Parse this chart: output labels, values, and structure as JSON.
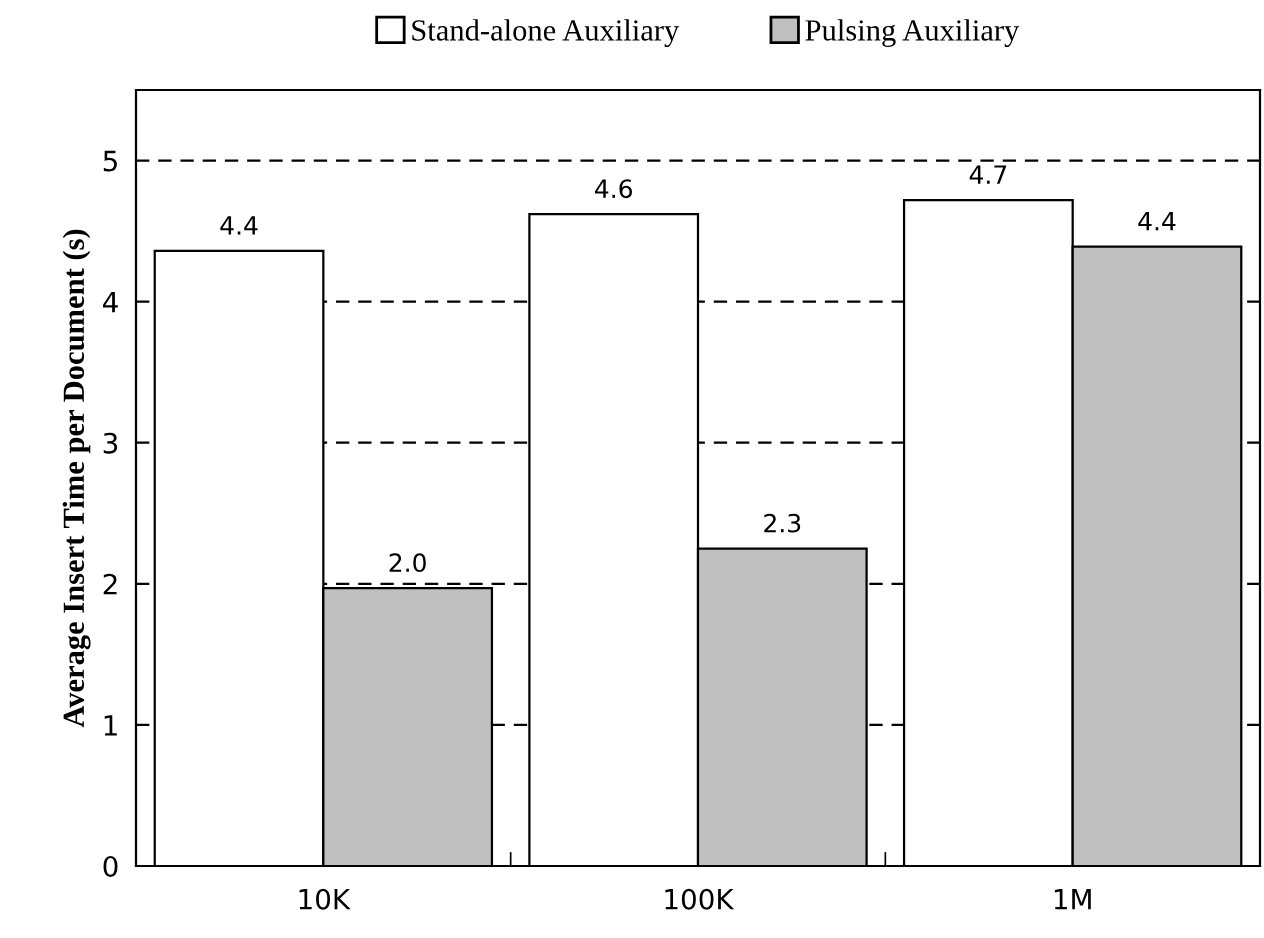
{
  "chart_data": {
    "type": "bar",
    "ylabel": "Average Insert Time per Document (s)",
    "categories": [
      "10K",
      "100K",
      "1M"
    ],
    "series": [
      {
        "name": "Stand-alone Auxiliary",
        "color": "#ffffff",
        "values": [
          4.36,
          4.62,
          4.72
        ],
        "value_labels": [
          "4.4",
          "4.6",
          "4.7"
        ]
      },
      {
        "name": "Pulsing Auxiliary",
        "color": "#c0c0c0",
        "values": [
          1.97,
          2.25,
          4.39
        ],
        "value_labels": [
          "2.0",
          "2.3",
          "4.4"
        ]
      }
    ],
    "ylim": [
      0,
      5.5
    ],
    "yticks": [
      0,
      1,
      2,
      3,
      4,
      5
    ],
    "grid": "y",
    "legend": "top",
    "line_style": "dashed"
  }
}
